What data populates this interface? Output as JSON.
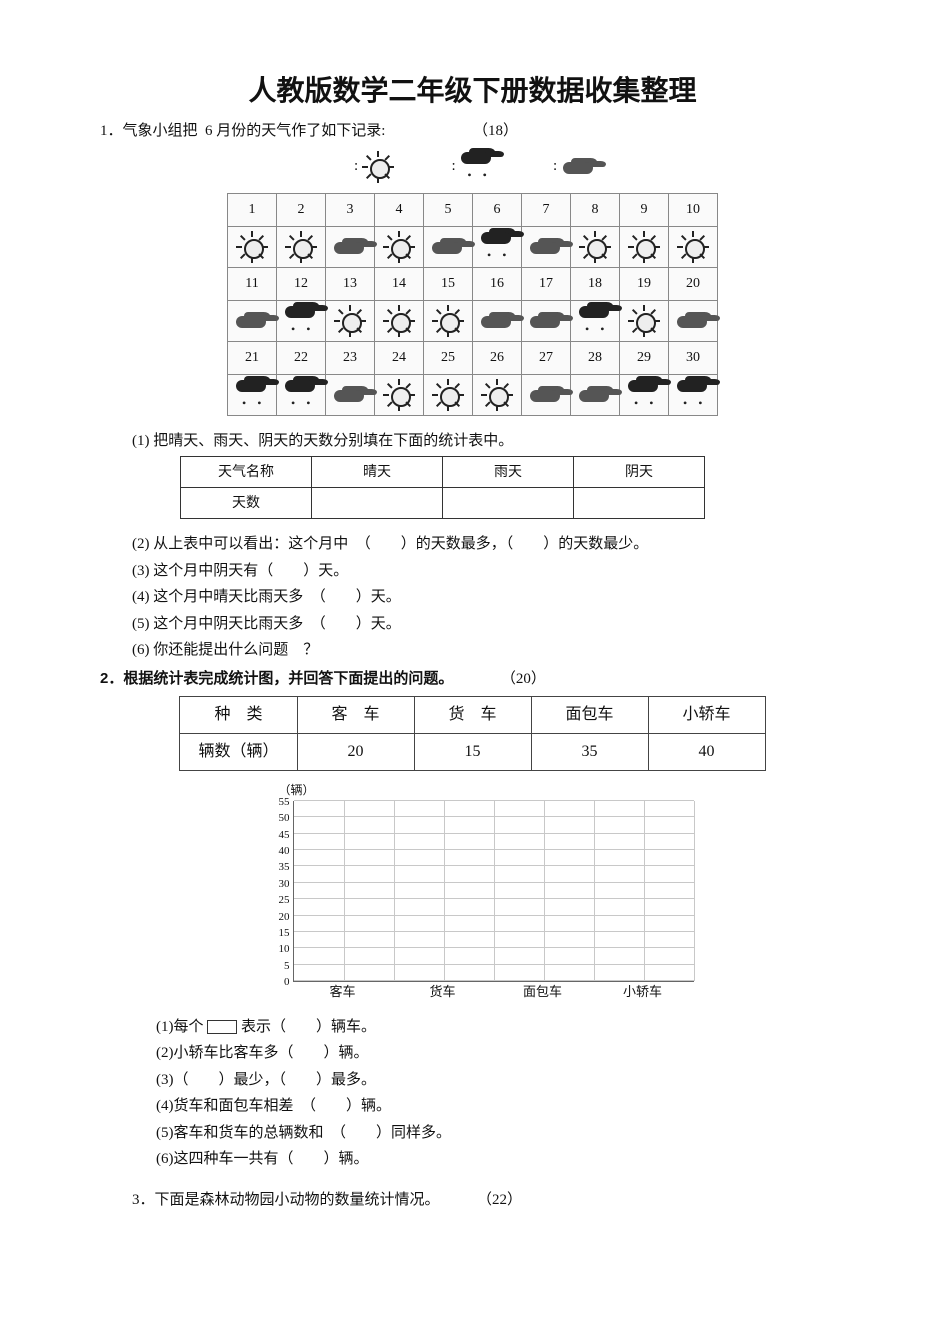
{
  "title": "人教版数学二年级下册数据收集整理",
  "q1": {
    "prompt_prefix": "1．气象小组把",
    "prompt_month": "6 月份的天气作了如下记录:",
    "points": "（18）",
    "legend": {
      "sunny": "sunny",
      "rainy": "rainy",
      "cloudy": "cloudy"
    },
    "calendar_days": [
      "1",
      "2",
      "3",
      "4",
      "5",
      "6",
      "7",
      "8",
      "9",
      "10",
      "11",
      "12",
      "13",
      "14",
      "15",
      "16",
      "17",
      "18",
      "19",
      "20",
      "21",
      "22",
      "23",
      "24",
      "25",
      "26",
      "27",
      "28",
      "29",
      "30"
    ],
    "calendar_weather": [
      "sunny",
      "sunny",
      "cloudy",
      "sunny",
      "cloudy",
      "rainy",
      "cloudy",
      "sunny",
      "sunny",
      "sunny",
      "cloudy",
      "rainy",
      "sunny",
      "sunny",
      "sunny",
      "cloudy",
      "cloudy",
      "rainy",
      "sunny",
      "cloudy",
      "rainy",
      "rainy",
      "cloudy",
      "sunny",
      "sunny",
      "sunny",
      "cloudy",
      "cloudy",
      "rainy",
      "rainy"
    ],
    "sub1_text": "(1)  把晴天、雨天、阴天的天数分别填在下面的统计表中。",
    "stats_header": [
      "天气名称",
      "晴天",
      "雨天",
      "阴天"
    ],
    "stats_row_label": "天数",
    "sub2": "(2)  从上表中可以看出：这个月中　（　　）的天数最多，（　　）的天数最少。",
    "sub3": "(3)  这个月中阴天有（　　）天。",
    "sub4": "(4)  这个月中晴天比雨天多　（　　）天。",
    "sub5": "(5)  这个月中阴天比雨天多　（　　）天。",
    "sub6": "(6)  你还能提出什么问题　？"
  },
  "q2": {
    "prompt": "2．根据统计表完成统计图，并回答下面提出的问题。",
    "points": "（20）",
    "table_header": [
      "种　类",
      "客　车",
      "货　车",
      "面包车",
      "小轿车"
    ],
    "table_row_label": "辆数（辆）",
    "table_values": [
      "20",
      "15",
      "35",
      "40"
    ],
    "chart": {
      "unit_label": "（辆）",
      "y_ticks": [
        "0",
        "5",
        "10",
        "15",
        "20",
        "25",
        "30",
        "35",
        "40",
        "45",
        "50",
        "55"
      ],
      "y_max": 55,
      "x_categories": [
        "客车",
        "货车",
        "面包车",
        "小轿车"
      ],
      "grid_color": "#c8c8c8",
      "axis_color": "#666666",
      "bg": "#ffffff"
    },
    "sub1_a": "(1)每个",
    "sub1_b": "表示（　　）辆车。",
    "sub2": "(2)小轿车比客车多（　　）辆。",
    "sub3": "(3)（　　）最少，（　　）最多。",
    "sub4": "(4)货车和面包车相差　（　　）辆。",
    "sub5": "(5)客车和货车的总辆数和　（　　）同样多。",
    "sub6": "(6)这四种车一共有（　　）辆。"
  },
  "q3": {
    "prompt": "3．下面是森林动物园小动物的数量统计情况。",
    "points": "（22）"
  }
}
